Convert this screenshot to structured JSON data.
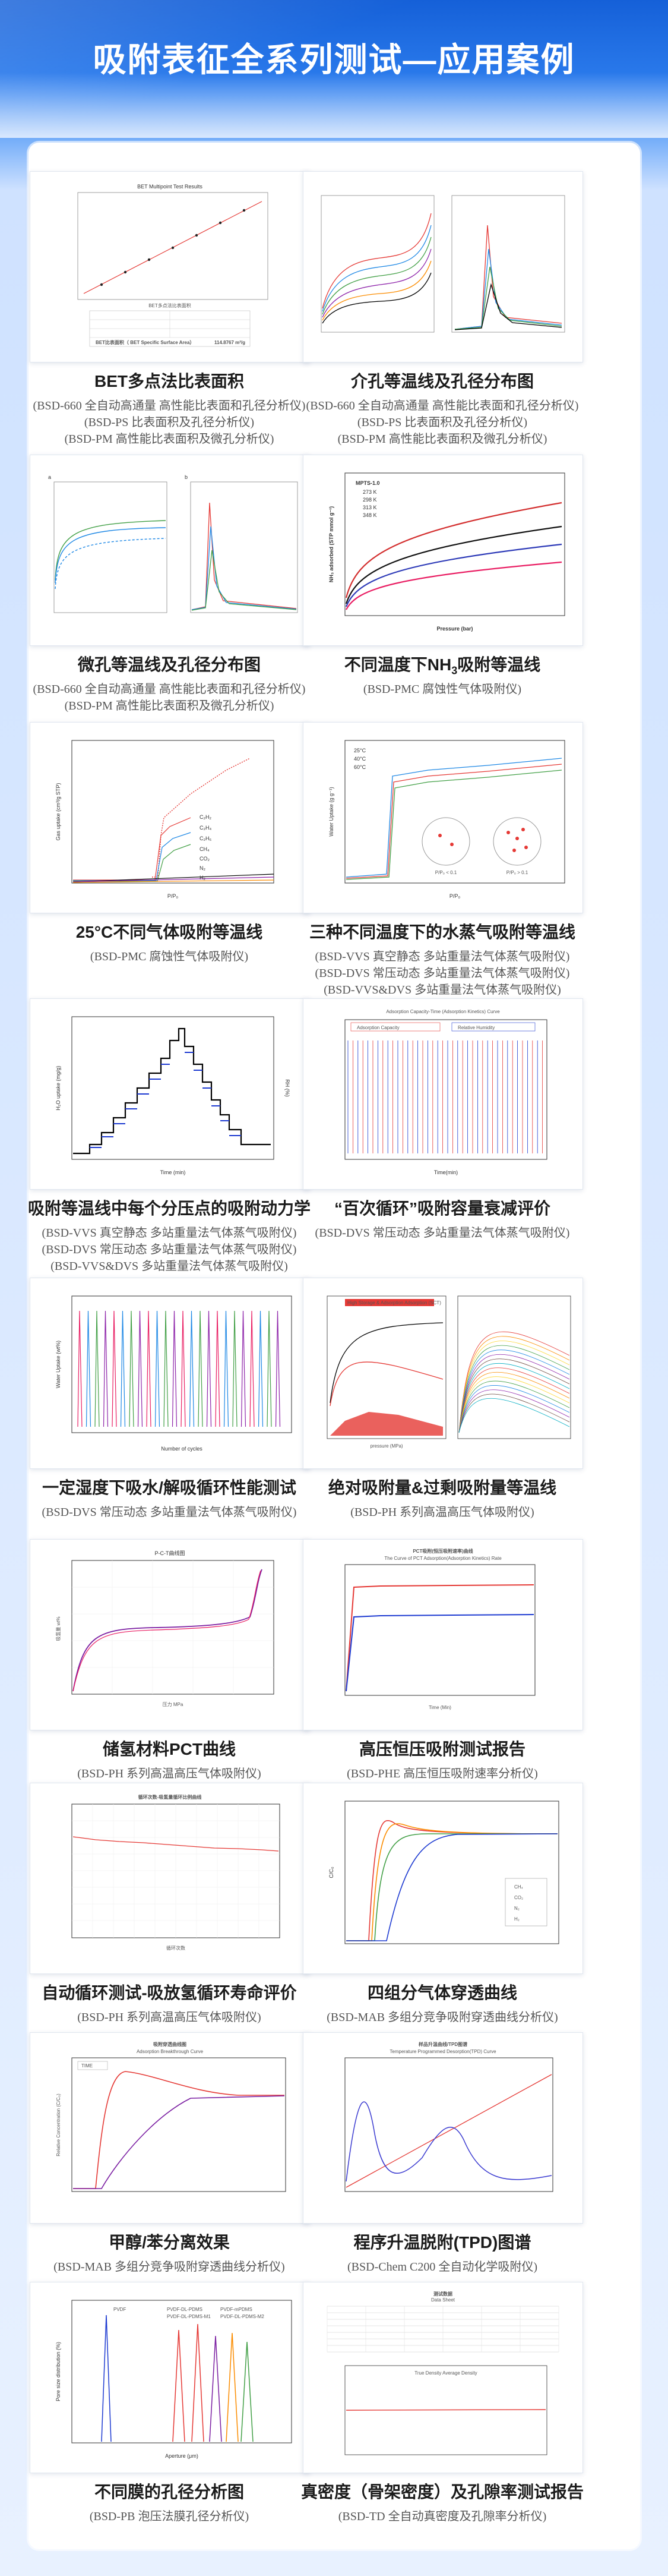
{
  "page": {
    "title": "吸附表征全系列测试—应用案例"
  },
  "cards": [
    {
      "caption": "BET多点法比表面积",
      "lines": [
        "(BSD-660 全自动高通量 高性能比表面和孔径分析仪)",
        "(BSD-PS 比表面积及孔径分析仪)",
        "(BSD-PM 高性能比表面积及微孔分析仪)"
      ],
      "chart_texts": [
        "BET多点法比表面积",
        "BET Multipoint Test Results",
        "BET比表面积（ BET Specific Surface Area）",
        "114.8767 m²/g"
      ]
    },
    {
      "caption": "介孔等温线及孔径分布图",
      "lines": [
        "(BSD-660 全自动高通量 高性能比表面和孔径分析仪)",
        "(BSD-PS 比表面积及孔径分析仪)",
        "(BSD-PM 高性能比表面积及微孔分析仪)"
      ]
    },
    {
      "caption": "微孔等温线及孔径分布图",
      "lines": [
        "(BSD-660 全自动高通量 高性能比表面和孔径分析仪)",
        "(BSD-PM 高性能比表面积及微孔分析仪)"
      ],
      "chart_texts": [
        "a",
        "b"
      ]
    },
    {
      "caption_pre": "不同温度下NH",
      "caption_sub": "3",
      "caption_post": "吸附等温线",
      "lines": [
        "(BSD-PMC 腐蚀性气体吸附仪)"
      ],
      "chart_texts": [
        "MPTS-1.0",
        "273 K",
        "298 K",
        "313 K",
        "348 K",
        "NH₃ adsorbed (STP mmol g⁻¹)",
        "Pressure (bar)"
      ]
    },
    {
      "caption": "25°C不同气体吸附等温线",
      "lines": [
        "(BSD-PMC 腐蚀性气体吸附仪)"
      ],
      "chart_texts": [
        "Gas uptake (cm³/g STP)",
        "P/P₀",
        "C₂H₂",
        "C₂H₄",
        "C₂H₆",
        "CH₄",
        "CO₂",
        "N₂",
        "H₂"
      ]
    },
    {
      "caption": "三种不同温度下的水蒸气吸附等温线",
      "lines": [
        "(BSD-VVS 真空静态 多站重量法气体蒸气吸附仪)",
        "(BSD-DVS 常压动态 多站重量法气体蒸气吸附仪)",
        "(BSD-VVS&DVS 多站重量法气体蒸气吸附仪)"
      ],
      "chart_texts": [
        "25°C",
        "40°C",
        "60°C",
        "Water Uptake (g g⁻¹)",
        "P/P₀",
        "P/P₀ < 0.1",
        "P/P₀ > 0.1"
      ]
    },
    {
      "caption": "吸附等温线中每个分压点的吸附动力学",
      "lines": [
        "(BSD-VVS 真空静态 多站重量法气体蒸气吸附仪)",
        "(BSD-DVS 常压动态 多站重量法气体蒸气吸附仪)",
        "(BSD-VVS&DVS 多站重量法气体蒸气吸附仪)"
      ],
      "chart_texts": [
        "H₂O uptake (mg/g)",
        "RH (%)",
        "Time (min)"
      ]
    },
    {
      "caption": "“百次循环”吸附容量衰减评价",
      "lines": [
        "(BSD-DVS 常压动态 多站重量法气体蒸气吸附仪)"
      ],
      "chart_texts": [
        "Adsorption Capacity-Time (Adsorption Kinetics) Curve",
        "Adsorption Capacity",
        "Relative Humidity",
        "Time(min)"
      ]
    },
    {
      "caption": "一定湿度下吸水/解吸循环性能测试",
      "lines": [
        "(BSD-DVS 常压动态 多站重量法气体蒸气吸附仪)"
      ],
      "chart_texts": [
        "Water Uptake (wt%)",
        "Number of cycles"
      ]
    },
    {
      "caption": "绝对吸附量&过剩吸附量等温线",
      "lines": [
        "(BSD-PH 系列高温高压气体吸附仪)"
      ],
      "chart_texts": [
        "High Storage & Adsorption Adsorption (SCT)",
        "pressure (MPa)"
      ]
    },
    {
      "caption": "储氢材料PCT曲线",
      "lines": [
        "(BSD-PH 系列高温高压气体吸附仪)"
      ],
      "chart_texts": [
        "P-C-T曲线图",
        "吸氢量 wt%",
        "压力 MPa"
      ]
    },
    {
      "caption": "高压恒压吸附测试报告",
      "lines": [
        "(BSD-PHE 高压恒压吸附速率分析仪)"
      ],
      "chart_texts": [
        "PCT吸附(恒压吸附速率)曲线",
        "The Curve of PCT Adsorption(Adsorption Kinetics) Rate",
        "Time (Min)"
      ]
    },
    {
      "caption": "自动循环测试-吸放氢循环寿命评价",
      "lines": [
        "(BSD-PH 系列高温高压气体吸附仪)"
      ],
      "chart_texts": [
        "循环次数-吸氢量循环比例曲线",
        "循环次数"
      ]
    },
    {
      "caption": "四组分气体穿透曲线",
      "lines": [
        "(BSD-MAB 多组分竞争吸附穿透曲线分析仪)"
      ],
      "chart_texts": [
        "C/C₀",
        "CH₄",
        "CO₂",
        "N₂",
        "H₂"
      ]
    },
    {
      "caption": "甲醇/苯分离效果",
      "lines": [
        "(BSD-MAB 多组分竞争吸附穿透曲线分析仪)"
      ],
      "chart_texts": [
        "吸附穿透曲线图",
        "Adsorption Breakthrough Curve",
        "TIME",
        "Relative Concentration (C/C₀)"
      ]
    },
    {
      "caption": "程序升温脱附(TPD)图谱",
      "lines": [
        "(BSD-Chem C200 全自动化学吸附仪)"
      ],
      "chart_texts": [
        "样品升温曲线/TPD图谱",
        "Temperature Programmed Desorption(TPD) Curve"
      ]
    },
    {
      "caption": "不同膜的孔径分析图",
      "lines": [
        "(BSD-PB 泡压法膜孔径分析仪)"
      ],
      "chart_texts": [
        "Pore size distribution (%)",
        "Aperture (μm)",
        "PVDF",
        "PVDF-DL-PDMS",
        "PVDF-mPDMS",
        "PVDF-DL-PDMS-M1",
        "PVDF-DL-PDMS-M2"
      ]
    },
    {
      "caption": "真密度（骨架密度）及孔隙率测试报告",
      "lines": [
        "(BSD-TD 全自动真密度及孔隙率分析仪)"
      ],
      "chart_texts": [
        "测试数据",
        "Data Sheet",
        "True Density Average Density"
      ]
    }
  ]
}
